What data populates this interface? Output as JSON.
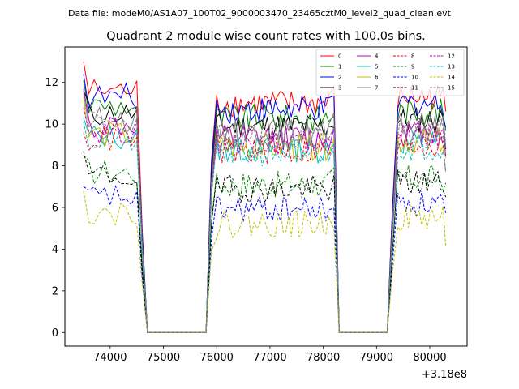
{
  "suptitle": "Data file: modeM0/AS1A07_100T02_9000003470_23465cztM0_level2_quad_clean.evt",
  "title": "Quadrant 2 module wise count rates with 100.0s bins.",
  "offset_label": "+3.18e8",
  "chart_data": {
    "type": "line",
    "title": "Quadrant 2 module wise count rates with 100.0s bins.",
    "xlabel": "",
    "ylabel": "",
    "x_offset": 318000000,
    "xlim": [
      73150,
      80700
    ],
    "ylim": [
      -0.65,
      13.7
    ],
    "x_ticks": [
      74000,
      75000,
      76000,
      77000,
      78000,
      79000,
      80000
    ],
    "x_tick_labels": [
      "74000",
      "75000",
      "76000",
      "77000",
      "78000",
      "79000",
      "80000"
    ],
    "y_ticks": [
      0,
      2,
      4,
      6,
      8,
      10,
      12
    ],
    "y_tick_labels": [
      "0",
      "2",
      "4",
      "6",
      "8",
      "10",
      "12"
    ],
    "legend_position": "top-right",
    "segments": [
      {
        "start": 73500,
        "end": 74600
      },
      {
        "start": 75900,
        "end": 78200
      },
      {
        "start": 79300,
        "end": 80300
      }
    ],
    "gaps": [
      {
        "start": 74700,
        "end": 75800
      },
      {
        "start": 78300,
        "end": 79200
      }
    ],
    "series": [
      {
        "name": "0",
        "color": "#ff0000",
        "dash": "solid",
        "level": 11.0,
        "seed": 1,
        "first": 13.0
      },
      {
        "name": "1",
        "color": "#008000",
        "dash": "solid",
        "level": 10.3,
        "seed": 2,
        "first": 12.1
      },
      {
        "name": "2",
        "color": "#0000ff",
        "dash": "solid",
        "level": 10.7,
        "seed": 3,
        "first": 12.4
      },
      {
        "name": "3",
        "color": "#000000",
        "dash": "solid",
        "level": 9.9,
        "seed": 4,
        "first": 11.6
      },
      {
        "name": "4",
        "color": "#bf00bf",
        "dash": "solid",
        "level": 9.3,
        "seed": 5,
        "first": 11.7
      },
      {
        "name": "5",
        "color": "#00bfbf",
        "dash": "solid",
        "level": 8.8,
        "seed": 6,
        "first": 10.3
      },
      {
        "name": "6",
        "color": "#bfbf00",
        "dash": "solid",
        "level": 8.9,
        "seed": 7,
        "first": 11.2
      },
      {
        "name": "7",
        "color": "#808080",
        "dash": "solid",
        "level": 9.6,
        "seed": 8,
        "first": 11.5
      },
      {
        "name": "8",
        "color": "#ff0000",
        "dash": "dashed",
        "level": 8.7,
        "seed": 9,
        "first": 9.6
      },
      {
        "name": "9",
        "color": "#008000",
        "dash": "dashed",
        "level": 7.1,
        "seed": 10,
        "first": 8.5
      },
      {
        "name": "10",
        "color": "#0000ff",
        "dash": "dashed",
        "level": 5.9,
        "seed": 11,
        "first": 7.0
      },
      {
        "name": "11",
        "color": "#000000",
        "dash": "dashed",
        "level": 6.9,
        "seed": 12,
        "first": 8.7
      },
      {
        "name": "12",
        "color": "#bf00bf",
        "dash": "dashed",
        "level": 9.1,
        "seed": 13,
        "first": 10.8
      },
      {
        "name": "13",
        "color": "#00bfbf",
        "dash": "dashed",
        "level": 8.6,
        "seed": 14,
        "first": 10.1
      },
      {
        "name": "14",
        "color": "#bfbf00",
        "dash": "dashed",
        "level": 5.2,
        "seed": 15,
        "first": 6.8
      },
      {
        "name": "15",
        "color": "#808080",
        "dash": "dashed",
        "level": 9.5,
        "seed": 16,
        "first": 11.3
      }
    ]
  }
}
